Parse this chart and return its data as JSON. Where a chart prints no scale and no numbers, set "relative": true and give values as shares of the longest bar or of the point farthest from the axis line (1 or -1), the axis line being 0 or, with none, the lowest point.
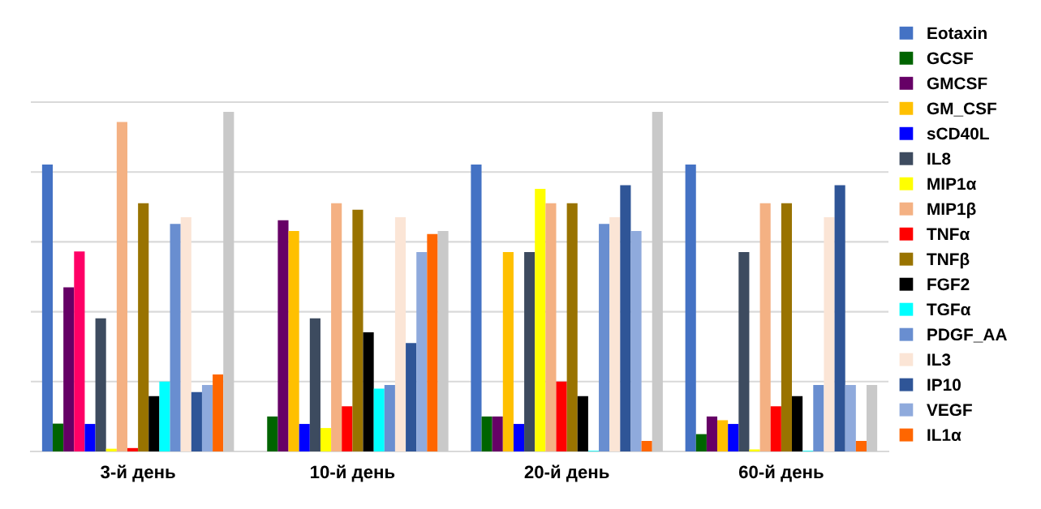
{
  "chart_data": {
    "type": "bar",
    "relative": true,
    "grid": "y",
    "legend": "right",
    "categories": [
      "3-й день",
      "10-й день",
      "20-й день",
      "60-й день"
    ],
    "series": [
      {
        "name": "Eotaxin",
        "color": "#4472c4",
        "values": [
          0.845,
          null,
          0.845,
          0.845
        ]
      },
      {
        "name": "GCSF",
        "color": "#006400",
        "values": [
          0.082,
          0.103,
          0.103,
          0.051
        ]
      },
      {
        "name": "GMCSF",
        "color": "#660066",
        "values": [
          0.483,
          0.681,
          0.103,
          0.103
        ]
      },
      {
        "name": "GM_CSF",
        "color": "#ffc000",
        "colors": [
          "#ff0066",
          "#ffc000",
          "#ffc000",
          "#ffc000"
        ],
        "values": [
          0.589,
          0.649,
          0.587,
          0.092
        ]
      },
      {
        "name": "sCD40L",
        "color": "#0000ff",
        "values": [
          0.081,
          0.081,
          0.081,
          0.081
        ]
      },
      {
        "name": "IL8",
        "color": "#3d4b5f",
        "values": [
          0.392,
          0.392,
          0.587,
          0.587
        ]
      },
      {
        "name": "MIP1α",
        "color": "#ffff00",
        "values": [
          0.008,
          0.069,
          0.773,
          0.006
        ]
      },
      {
        "name": "MIP1β",
        "color": "#f4b183",
        "values": [
          0.97,
          0.731,
          0.731,
          0.731
        ]
      },
      {
        "name": "TNFα",
        "color": "#ff0000",
        "values": [
          0.01,
          0.133,
          0.206,
          0.133
        ]
      },
      {
        "name": "TNFβ",
        "color": "#997300",
        "values": [
          0.731,
          0.712,
          0.731,
          0.731
        ]
      },
      {
        "name": "FGF2",
        "color": "#000000",
        "values": [
          0.163,
          0.351,
          0.163,
          0.163
        ]
      },
      {
        "name": "TGFα",
        "color": "#00ffff",
        "values": [
          0.206,
          0.185,
          0.002,
          0.002
        ]
      },
      {
        "name": "PDGF_AA",
        "color": "#698ed0",
        "values": [
          0.67,
          0.196,
          0.67,
          0.196
        ]
      },
      {
        "name": "IL3",
        "color": "#fbe5d6",
        "values": [
          0.69,
          0.69,
          0.69,
          0.69
        ]
      },
      {
        "name": "IP10",
        "color": "#2f5597",
        "values": [
          0.175,
          0.319,
          0.784,
          0.784
        ]
      },
      {
        "name": "VEGF",
        "color": "#8faadc",
        "values": [
          0.196,
          0.587,
          0.649,
          0.196
        ]
      },
      {
        "name": "IL1α",
        "color": "#ff6600",
        "values": [
          0.227,
          0.64,
          0.031,
          0.031
        ]
      },
      {
        "color": "#c9c9c9",
        "values": [
          1.0,
          0.649,
          1.0,
          0.196
        ]
      }
    ]
  }
}
